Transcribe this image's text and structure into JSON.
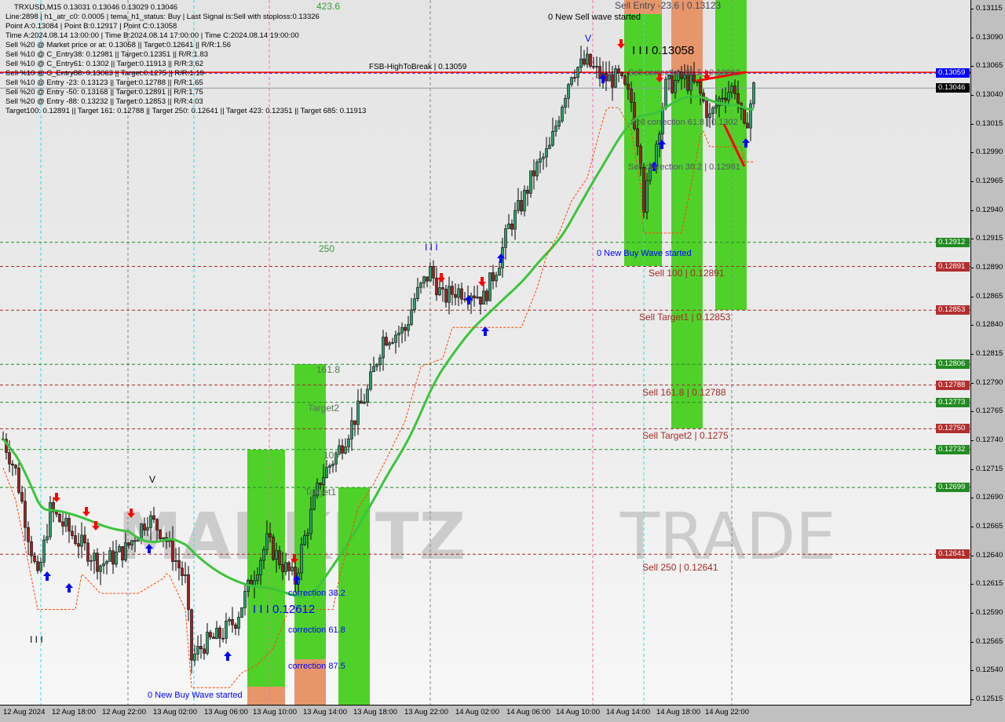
{
  "header": {
    "title": "TRXUSD,M15  0.13031 0.13046 0.13029 0.13046",
    "lines": [
      "Line:2898 | h1_atr_c0: 0.0005 | tema_h1_status: Buy | Last Signal is:Sell with stoploss:0.13326",
      "Point A:0.13084 | Point B:0.12917 | Point C:0.13058",
      "Time A:2024.08.14 13:00:00 | Time B:2024.08.14 17:00:00 | Time C:2024.08.14 19:00:00",
      "Sell %20 @ Market price or at: 0.13058 || Target:0.12641 || R/R:1.56",
      "Sell %10 @ C_Entry38: 0.12981 || Target:0.12351 || R/R:1.83",
      "Sell %10 @ C_Entry61: 0.1302 || Target:0.11913 || R/R:3.62",
      "Sell %10 @ C_Entry88: 0.13063 || Target:0.1275 || R/R:1.19",
      "Sell %10 @ Entry -23: 0.13123 || Target:0.12788 || R/R:1.65",
      "Sell %20 @ Entry -50: 0.13168 || Target:0.12891 || R/R:1.75",
      "Sell %20 @ Entry -88: 0.13232 || Target:0.12853 || R/R:4.03",
      "Target100: 0.12891 || Target 161: 0.12788 || Target 250: 0.12641 || Target 423: 0.12351 || Target 685: 0.11913"
    ]
  },
  "watermark": "MARKETZ TRADE",
  "colors": {
    "bull": "#2e9e6b",
    "bear": "#a02020",
    "ma": "#3cc43c",
    "zone_green": "#4fd12a",
    "zone_orange": "#e6966a",
    "sell_text": "#a52a2a",
    "buy_text": "#0000ff"
  },
  "annotations": {
    "fib_423": "423.6",
    "fib_250": "250",
    "fib_161": "161.8",
    "target2": "Target2",
    "fib_100": "100",
    "target1": "Target1",
    "buy_point": "I I I 0.12612",
    "corr38": "correction 38.2",
    "corr61": "correction 61.8",
    "corr87": "correction 87.5",
    "new_buy_1": "0 New Buy Wave started",
    "new_buy_2": "0 New Buy Wave started",
    "marker_left": "I I I",
    "marker_mid": "I I I",
    "new_sell": "0 New Sell wave started",
    "sell_entry": "Sell Entry -23.6 | 0.13123",
    "sell_point": "I I I 0.13058",
    "sell_corr87": "Sell correction 87.5 | 0.13063",
    "sell_corr61": "Sell correction 61.8 | 0.1302",
    "sell_corr38": "Sell correction 38.2 | 0.12981",
    "sell_100": "Sell 100 | 0.12891",
    "sell_t1": "Sell Target1 | 0.12853",
    "sell_161": "Sell 161.8 | 0.12788",
    "sell_t2": "Sell Target2 | 0.1275",
    "sell_250": "Sell  250 | 0.12641",
    "fsb": "FSB-HighToBreak | 0.13059",
    "v_top": "V",
    "v_left": "V"
  },
  "chart_data": {
    "type": "candlestick",
    "symbol": "TRXUSD",
    "timeframe": "M15",
    "ylim": [
      0.12505,
      0.13125
    ],
    "y_ticks": [
      0.13115,
      0.1309,
      0.13065,
      0.1304,
      0.13015,
      0.1299,
      0.12965,
      0.1294,
      0.12915,
      0.1289,
      0.12865,
      0.1284,
      0.12815,
      0.1279,
      0.12765,
      0.1274,
      0.12715,
      0.1269,
      0.12665,
      0.1264,
      0.12615,
      0.1259,
      0.12565,
      0.1254,
      0.12515
    ],
    "x_ticks": [
      "12 Aug 2024",
      "12 Aug 18:00",
      "12 Aug 22:00",
      "13 Aug 02:00",
      "13 Aug 06:00",
      "13 Aug 10:00",
      "13 Aug 14:00",
      "13 Aug 18:00",
      "13 Aug 22:00",
      "14 Aug 02:00",
      "14 Aug 06:00",
      "14 Aug 10:00",
      "14 Aug 14:00",
      "14 Aug 18:00",
      "14 Aug 22:00"
    ],
    "price_path": [
      [
        "2024-08-12 14:00",
        0.12741
      ],
      [
        "2024-08-12 15:00",
        0.12713
      ],
      [
        "2024-08-12 16:45",
        0.12618
      ],
      [
        "2024-08-12 17:45",
        0.12679
      ],
      [
        "2024-08-12 20:00",
        0.12652
      ],
      [
        "2024-08-12 21:45",
        0.12632
      ],
      [
        "2024-08-12 23:45",
        0.12645
      ],
      [
        "2024-08-13 01:30",
        0.12673
      ],
      [
        "2024-08-13 02:45",
        0.12659
      ],
      [
        "2024-08-13 04:30",
        0.12618
      ],
      [
        "2024-08-13 05:00",
        0.1255
      ],
      [
        "2024-08-13 06:00",
        0.12563
      ],
      [
        "2024-08-13 07:15",
        0.1257
      ],
      [
        "2024-08-13 08:30",
        0.12584
      ],
      [
        "2024-08-13 09:45",
        0.12618
      ],
      [
        "2024-08-13 11:00",
        0.12652
      ],
      [
        "2024-08-13 12:15",
        0.12632
      ],
      [
        "2024-08-13 13:15",
        0.12618
      ],
      [
        "2024-08-13 13:45",
        0.12645
      ],
      [
        "2024-08-13 15:15",
        0.12706
      ],
      [
        "2024-08-13 16:30",
        0.12727
      ],
      [
        "2024-08-13 17:45",
        0.12754
      ],
      [
        "2024-08-13 19:00",
        0.12782
      ],
      [
        "2024-08-13 20:15",
        0.12829
      ],
      [
        "2024-08-13 22:00",
        0.12836
      ],
      [
        "2024-08-13 22:45",
        0.12863
      ],
      [
        "2024-08-14 00:00",
        0.12887
      ],
      [
        "2024-08-14 01:00",
        0.12863
      ],
      [
        "2024-08-14 02:00",
        0.1287
      ],
      [
        "2024-08-14 03:15",
        0.1287
      ],
      [
        "2024-08-14 04:15",
        0.12863
      ],
      [
        "2024-08-14 05:30",
        0.12897
      ],
      [
        "2024-08-14 06:15",
        0.12925
      ],
      [
        "2024-08-14 07:15",
        0.12945
      ],
      [
        "2024-08-14 08:15",
        0.12973
      ],
      [
        "2024-08-14 09:30",
        0.12993
      ],
      [
        "2024-08-14 10:30",
        0.13034
      ],
      [
        "2024-08-14 11:15",
        0.13061
      ],
      [
        "2024-08-14 12:30",
        0.13068
      ],
      [
        "2024-08-14 13:45",
        0.13054
      ],
      [
        "2024-08-14 15:00",
        0.13054
      ],
      [
        "2024-08-14 16:00",
        0.13034
      ],
      [
        "2024-08-14 16:45",
        0.12986
      ],
      [
        "2024-08-14 17:00",
        0.12945
      ],
      [
        "2024-08-14 18:00",
        0.12999
      ],
      [
        "2024-08-14 18:45",
        0.13047
      ],
      [
        "2024-08-14 20:00",
        0.13054
      ],
      [
        "2024-08-14 21:15",
        0.13047
      ],
      [
        "2024-08-14 22:15",
        0.1302
      ],
      [
        "2024-08-14 23:15",
        0.13041
      ],
      [
        "2024-08-15 00:15",
        0.13047
      ],
      [
        "2024-08-15 01:00",
        0.13007
      ],
      [
        "2024-08-15 01:45",
        0.13046
      ]
    ],
    "levels": [
      {
        "price": "0.13059",
        "color": "#0000ff"
      },
      {
        "price": "0.13046",
        "color": "#000000"
      },
      {
        "price": "0.12912",
        "color": "#228b22"
      },
      {
        "price": "0.12891",
        "color": "#a52a2a"
      },
      {
        "price": "0.12853",
        "color": "#a52a2a"
      },
      {
        "price": "0.12806",
        "color": "#228b22"
      },
      {
        "price": "0.12788",
        "color": "#a52a2a"
      },
      {
        "price": "0.12773",
        "color": "#228b22"
      },
      {
        "price": "0.12750",
        "color": "#a52a2a"
      },
      {
        "price": "0.12732",
        "color": "#228b22"
      },
      {
        "price": "0.12699",
        "color": "#228b22"
      },
      {
        "price": "0.12641",
        "color": "#a52a2a"
      }
    ]
  }
}
